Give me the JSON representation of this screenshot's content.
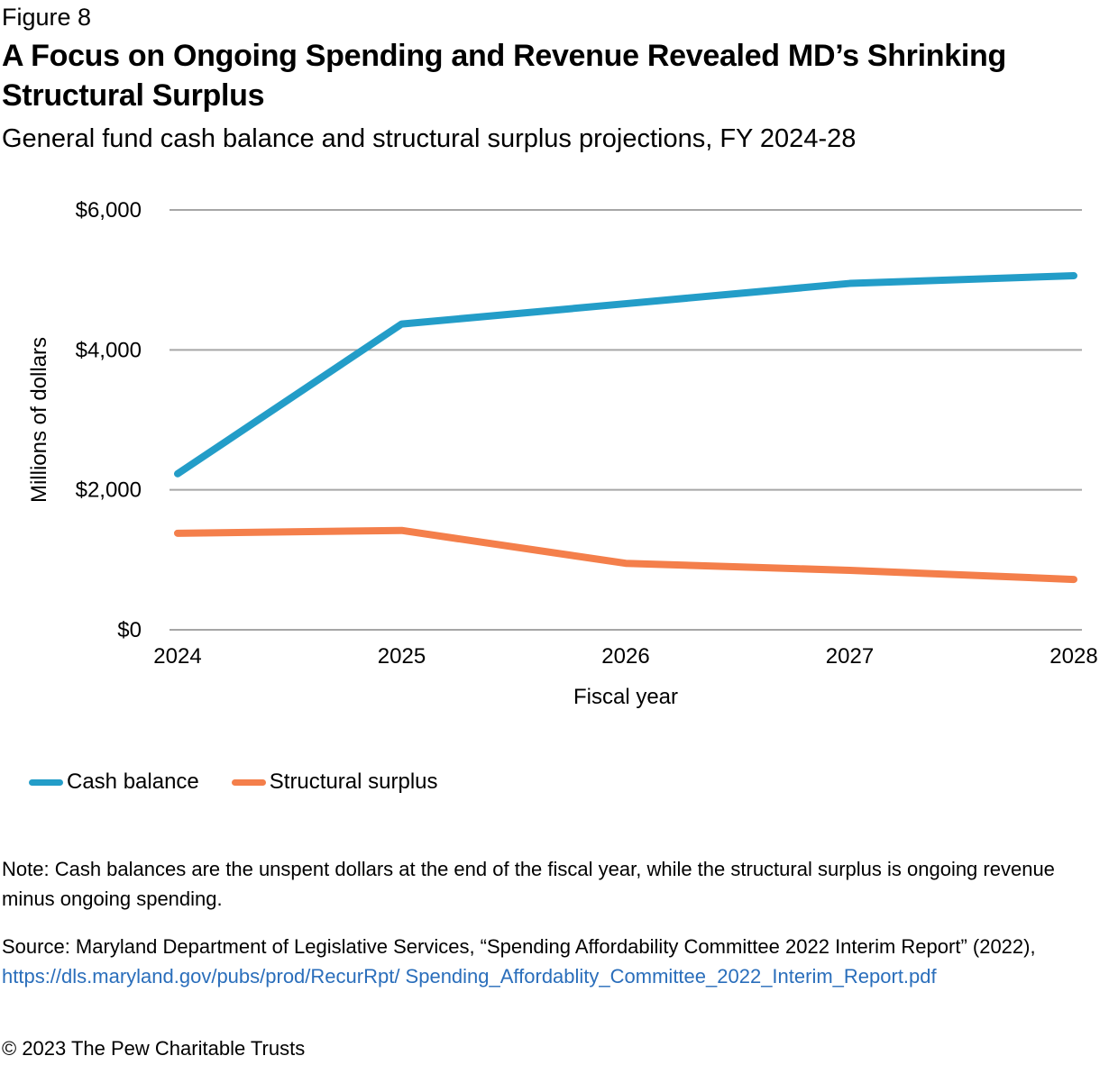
{
  "figure_label": "Figure 8",
  "title": "A Focus on Ongoing Spending and Revenue Revealed MD’s Shrinking Structural Surplus",
  "subtitle": "General fund cash balance and structural surplus projections, FY 2024-28",
  "note": "Note: Cash balances are the unspent dollars at the end of the fiscal year, while the structural surplus is ongoing revenue minus ongoing spending.",
  "source": {
    "text": "Source: Maryland Department of Legislative Services, “Spending Affordability Committee 2022 Interim Report” (2022), ",
    "link_text": "https://dls.maryland.gov/pubs/prod/RecurRpt/ Spending_Affordablity_Committee_2022_Interim_Report.pdf"
  },
  "copyright": "© 2023 The Pew Charitable Trusts",
  "colors": {
    "cash_balance": "#239dc8",
    "structural_surplus": "#f47f4b",
    "grid": "#a6a6a6",
    "link": "#2a6ebb"
  },
  "chart_data": {
    "type": "line",
    "title": "A Focus on Ongoing Spending and Revenue Revealed MD’s Shrinking Structural Surplus",
    "subtitle": "General fund cash balance and structural surplus projections, FY 2024-28",
    "xlabel": "Fiscal year",
    "ylabel": "Millions of dollars",
    "x": [
      "2024",
      "2025",
      "2026",
      "2027",
      "2028"
    ],
    "ylim": [
      0,
      6000
    ],
    "yticks": [
      0,
      2000,
      4000,
      6000
    ],
    "ytick_labels": [
      "$0",
      "$2,000",
      "$4,000",
      "$6,000"
    ],
    "grid": true,
    "legend_position": "bottom-left",
    "series": [
      {
        "name": "Cash balance",
        "color": "#239dc8",
        "values": [
          2230,
          4370,
          4660,
          4950,
          5060
        ]
      },
      {
        "name": "Structural surplus",
        "color": "#f47f4b",
        "values": [
          1380,
          1420,
          950,
          850,
          720
        ]
      }
    ]
  }
}
